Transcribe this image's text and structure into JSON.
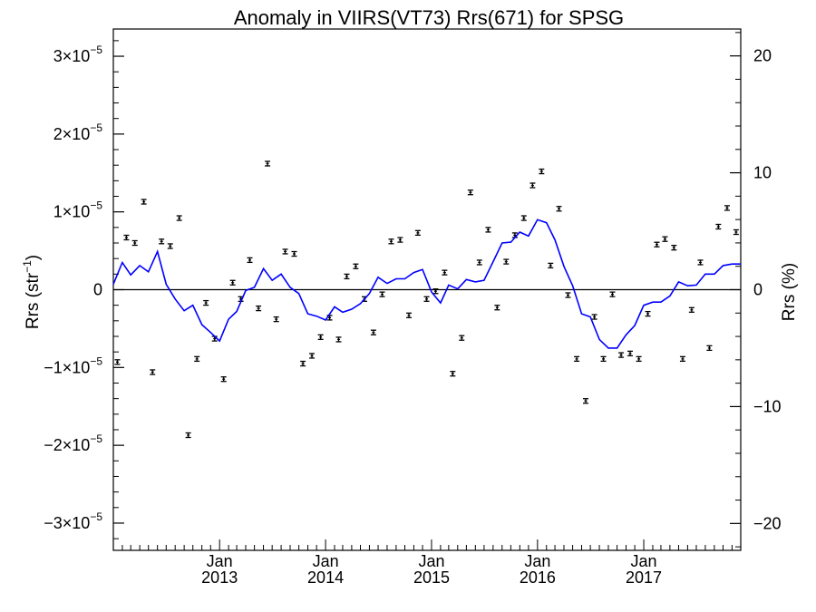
{
  "chart_data": {
    "type": "scatter",
    "title": "Anomaly in VIIRS(VT73) Rrs(671) for SPSG",
    "ylabel_left": {
      "base": "Rrs (str",
      "sup": "−1",
      "close": ")"
    },
    "ylabel_right": "Rrs (%)",
    "x_range": [
      "2012-01-01",
      "2017-12-01"
    ],
    "ylim_left": [
      -3.35e-05,
      3.35e-05
    ],
    "ylim_right": [
      -22.3,
      22.3
    ],
    "left_ticks": [
      {
        "value": 3e-05,
        "mantissa": "3",
        "exp": "−5"
      },
      {
        "value": 2e-05,
        "mantissa": "2",
        "exp": "−5"
      },
      {
        "value": 1e-05,
        "mantissa": "1",
        "exp": "−5"
      },
      {
        "value": 0,
        "label": "0"
      },
      {
        "value": -1e-05,
        "mantissa": "−1",
        "exp": "−5"
      },
      {
        "value": -2e-05,
        "mantissa": "−2",
        "exp": "−5"
      },
      {
        "value": -3e-05,
        "mantissa": "−3",
        "exp": "−5"
      }
    ],
    "right_ticks": [
      {
        "value": 20,
        "label": "20"
      },
      {
        "value": 10,
        "label": "10"
      },
      {
        "value": 0,
        "label": "0"
      },
      {
        "value": -10,
        "label": "−10"
      },
      {
        "value": -20,
        "label": "−20"
      }
    ],
    "x_ticks": [
      {
        "date": "2013-01-01",
        "month": "Jan",
        "year": "2013"
      },
      {
        "date": "2014-01-01",
        "month": "Jan",
        "year": "2014"
      },
      {
        "date": "2015-01-01",
        "month": "Jan",
        "year": "2015"
      },
      {
        "date": "2016-01-01",
        "month": "Jan",
        "year": "2016"
      },
      {
        "date": "2017-01-01",
        "month": "Jan",
        "year": "2017"
      }
    ],
    "zero_line": true,
    "grid": false,
    "series": [
      {
        "kind": "points_with_errorbars",
        "axis": "left",
        "color": "#000000",
        "x": [
          "2012-01-15",
          "2012-02-15",
          "2012-03-15",
          "2012-04-15",
          "2012-05-15",
          "2012-06-15",
          "2012-07-15",
          "2012-08-15",
          "2012-09-15",
          "2012-10-15",
          "2012-11-15",
          "2012-12-15",
          "2013-01-15",
          "2013-02-15",
          "2013-03-15",
          "2013-04-15",
          "2013-05-15",
          "2013-06-15",
          "2013-07-15",
          "2013-08-15",
          "2013-09-15",
          "2013-10-15",
          "2013-11-15",
          "2013-12-15",
          "2014-01-15",
          "2014-02-15",
          "2014-03-15",
          "2014-04-15",
          "2014-05-15",
          "2014-06-15",
          "2014-07-15",
          "2014-08-15",
          "2014-09-15",
          "2014-10-15",
          "2014-11-15",
          "2014-12-15",
          "2015-01-15",
          "2015-02-15",
          "2015-03-15",
          "2015-04-15",
          "2015-05-15",
          "2015-06-15",
          "2015-07-15",
          "2015-08-15",
          "2015-09-15",
          "2015-10-15",
          "2015-11-15",
          "2015-12-15",
          "2016-01-15",
          "2016-02-15",
          "2016-03-15",
          "2016-04-15",
          "2016-05-15",
          "2016-06-15",
          "2016-07-15",
          "2016-08-15",
          "2016-09-15",
          "2016-10-15",
          "2016-11-15",
          "2016-12-15",
          "2017-01-15",
          "2017-02-15",
          "2017-03-15",
          "2017-04-15",
          "2017-05-15",
          "2017-06-15",
          "2017-07-15",
          "2017-08-15",
          "2017-09-15",
          "2017-10-15",
          "2017-11-15"
        ],
        "y": [
          -9.3e-06,
          6.7e-06,
          6e-06,
          1.13e-05,
          -1.06e-05,
          6.2e-06,
          5.6e-06,
          9.2e-06,
          -1.87e-05,
          -8.9e-06,
          -1.7e-06,
          -6.3e-06,
          -1.15e-05,
          9e-07,
          -1.2e-06,
          3.8e-06,
          -2.4e-06,
          1.62e-05,
          -3.8e-06,
          4.9e-06,
          4.6e-06,
          -9.5e-06,
          -8.5e-06,
          -6.1e-06,
          -3.6e-06,
          -6.4e-06,
          1.7e-06,
          3e-06,
          -1.2e-06,
          -5.5e-06,
          -6e-07,
          6.2e-06,
          6.4e-06,
          -3.3e-06,
          7.3e-06,
          -1.2e-06,
          -2e-07,
          2.2e-06,
          -1.08e-05,
          -6.2e-06,
          1.25e-05,
          3.5e-06,
          7.7e-06,
          -2.3e-06,
          3.6e-06,
          7e-06,
          9.2e-06,
          1.34e-05,
          1.52e-05,
          3.1e-06,
          1.04e-05,
          -7e-07,
          -8.9e-06,
          -1.43e-05,
          -3.5e-06,
          -8.9e-06,
          -6e-07,
          -8.4e-06,
          -8.2e-06,
          -8.9e-06,
          -3.1e-06,
          5.8e-06,
          6.5e-06,
          5.4e-06,
          -8.9e-06,
          -2.6e-06,
          3.5e-06,
          -7.5e-06,
          8.1e-06,
          1.05e-05,
          7.4e-06
        ]
      },
      {
        "kind": "line",
        "axis": "left",
        "color": "#0000ff",
        "x": [
          "2012-01-01",
          "2012-02-01",
          "2012-03-01",
          "2012-04-01",
          "2012-05-01",
          "2012-06-01",
          "2012-07-01",
          "2012-08-01",
          "2012-09-01",
          "2012-10-01",
          "2012-11-01",
          "2012-12-01",
          "2013-01-01",
          "2013-02-01",
          "2013-03-01",
          "2013-04-01",
          "2013-05-01",
          "2013-06-01",
          "2013-07-01",
          "2013-08-01",
          "2013-09-01",
          "2013-10-01",
          "2013-11-01",
          "2013-12-01",
          "2014-01-01",
          "2014-02-01",
          "2014-03-01",
          "2014-04-01",
          "2014-05-01",
          "2014-06-01",
          "2014-07-01",
          "2014-08-01",
          "2014-09-01",
          "2014-10-01",
          "2014-11-01",
          "2014-12-01",
          "2015-01-01",
          "2015-02-01",
          "2015-03-01",
          "2015-04-01",
          "2015-05-01",
          "2015-06-01",
          "2015-07-01",
          "2015-08-01",
          "2015-09-01",
          "2015-10-01",
          "2015-11-01",
          "2015-12-01",
          "2016-01-01",
          "2016-02-01",
          "2016-03-01",
          "2016-04-01",
          "2016-05-01",
          "2016-06-01",
          "2016-07-01",
          "2016-08-01",
          "2016-09-01",
          "2016-10-01",
          "2016-11-01",
          "2016-12-01",
          "2017-01-01",
          "2017-02-01",
          "2017-03-01",
          "2017-04-01",
          "2017-05-01",
          "2017-06-01",
          "2017-07-01",
          "2017-08-01",
          "2017-09-01",
          "2017-10-01",
          "2017-11-01",
          "2017-12-01"
        ],
        "y": [
          7e-07,
          3.5e-06,
          1.9e-06,
          3.1e-06,
          2.3e-06,
          4.9e-06,
          7e-07,
          -1.2e-06,
          -2.7e-06,
          -2e-06,
          -4.5e-06,
          -5.5e-06,
          -6.6e-06,
          -3.8e-06,
          -2.8e-06,
          -1e-07,
          3e-07,
          2.7e-06,
          1.2e-06,
          2e-06,
          3e-07,
          -5e-07,
          -3.1e-06,
          -3.4e-06,
          -3.9e-06,
          -2.2e-06,
          -2.9e-06,
          -2.5e-06,
          -1.8e-06,
          -5e-07,
          1.6e-06,
          8e-07,
          1.4e-06,
          1.4e-06,
          2.2e-06,
          2.6e-06,
          -3e-07,
          -1.7e-06,
          6e-07,
          1e-07,
          1.3e-06,
          1e-06,
          1.2e-06,
          3.6e-06,
          6e-06,
          6.1e-06,
          7.4e-06,
          6.9e-06,
          9e-06,
          8.6e-06,
          6.4e-06,
          3e-06,
          5e-07,
          -3.1e-06,
          -3.5e-06,
          -6.4e-06,
          -7.5e-06,
          -7.5e-06,
          -5.8e-06,
          -4.6e-06,
          -2e-06,
          -1.6e-06,
          -1.6e-06,
          -8e-07,
          1e-06,
          5e-07,
          6e-07,
          2e-06,
          2e-06,
          3.1e-06,
          3.3e-06,
          3.3e-06
        ]
      }
    ]
  }
}
